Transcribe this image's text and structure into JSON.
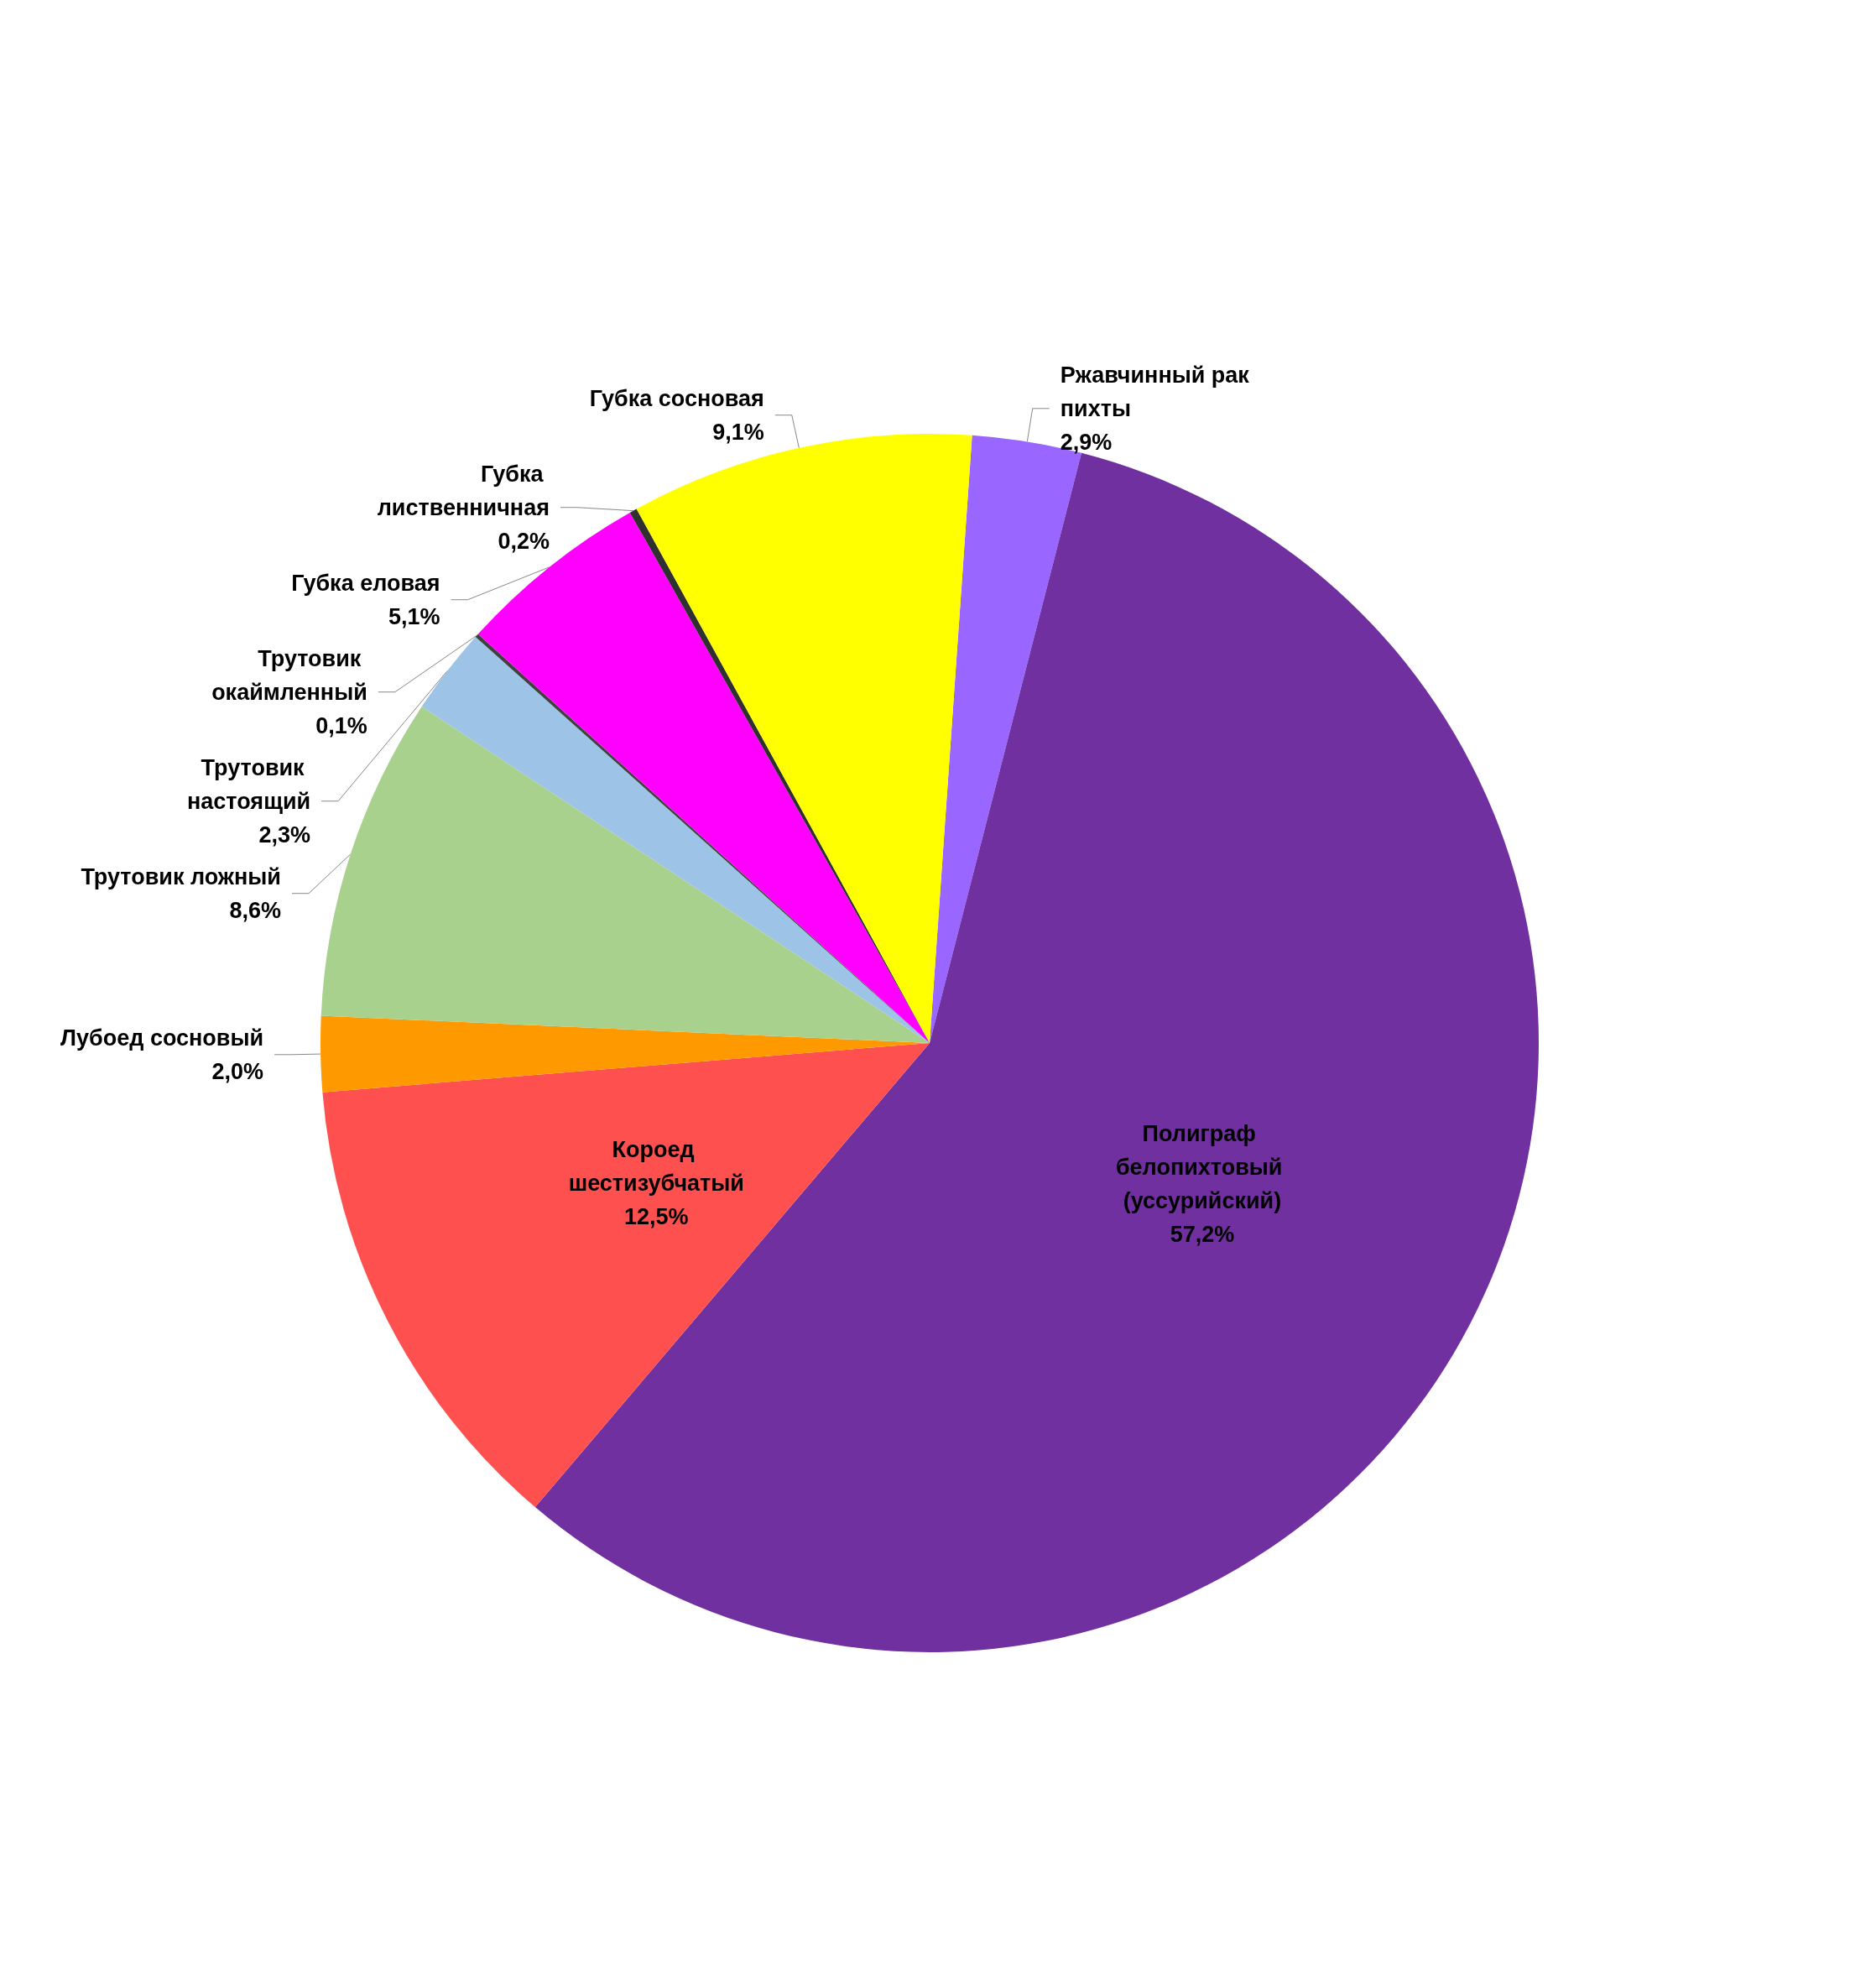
{
  "chart_data": {
    "type": "pie",
    "categories": [
      "Ржавчинный рак пихты",
      "Полиграф белопихтовый (уссурийский)",
      "Короед шестизубчатый",
      "Лубоед сосновый",
      "Трутовик ложный",
      "Трутовик настоящий",
      "Трутовик окаймленный",
      "Губка еловая",
      "Губка лиственничная",
      "Губка сосновая"
    ],
    "values": [
      2.9,
      57.2,
      12.5,
      2.0,
      8.6,
      2.3,
      0.1,
      5.1,
      0.2,
      9.1
    ],
    "value_labels": [
      "2,9%",
      "57,2%",
      "12,5%",
      "2,0%",
      "8,6%",
      "2,3%",
      "0,1%",
      "5,1%",
      "0,2%",
      "9,1%"
    ],
    "colors": [
      "#9966ff",
      "#7030a0",
      "#ff5050",
      "#ff9900",
      "#a9d18e",
      "#9dc3e6",
      "#404040",
      "#ff00ff",
      "#303030",
      "#ffff00"
    ],
    "legend": false
  }
}
